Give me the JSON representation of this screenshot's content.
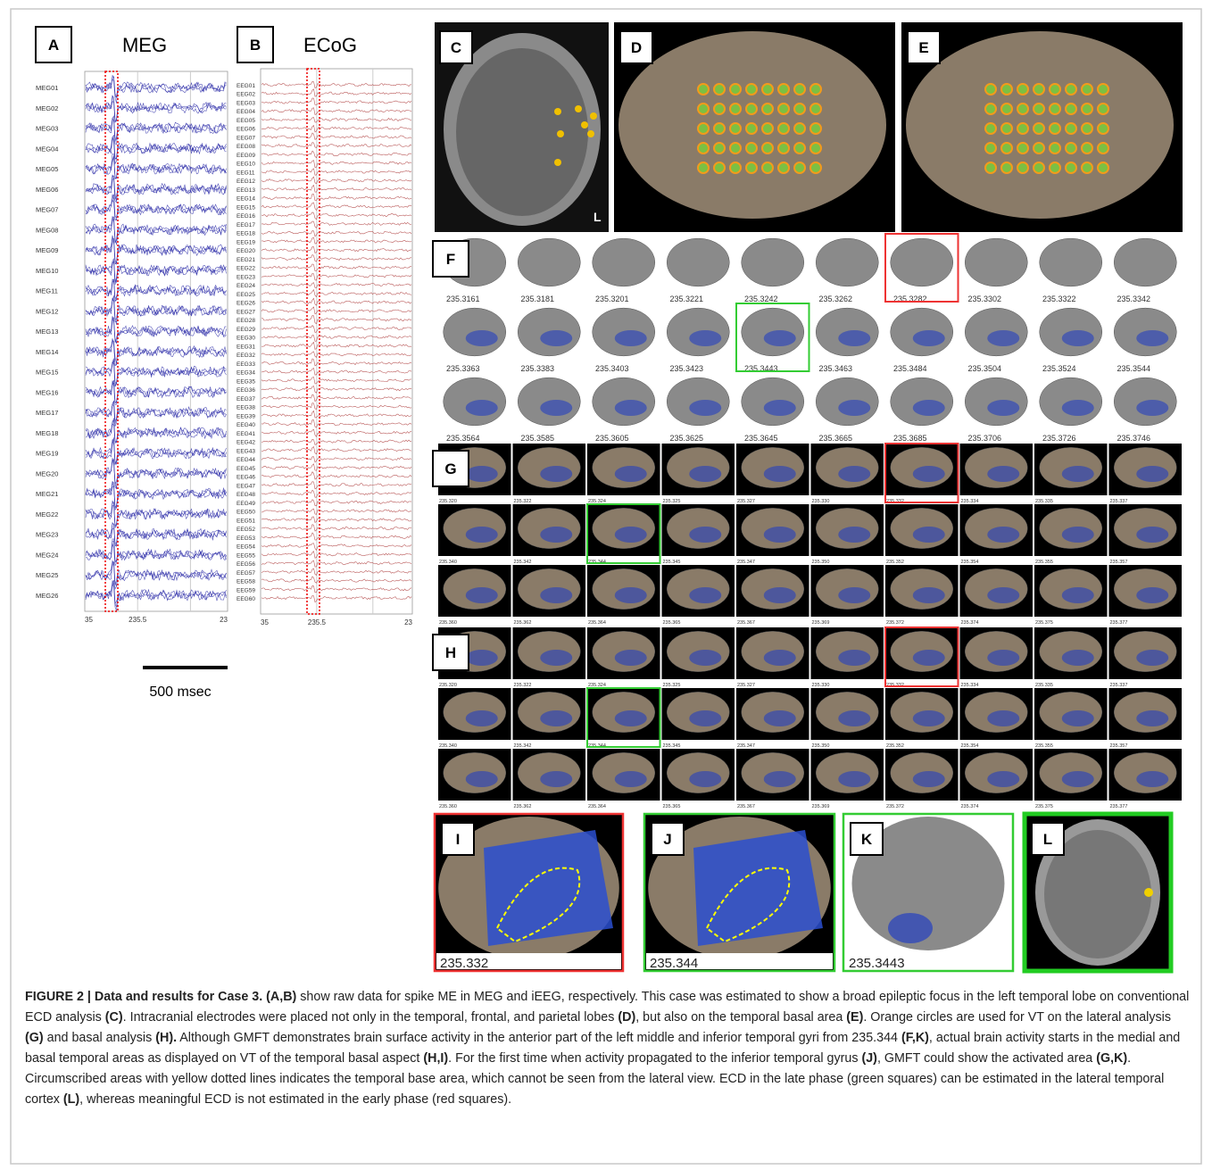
{
  "panels": {
    "A": {
      "label": "A",
      "title": "MEG",
      "channels": [
        "MEG01",
        "MEG02",
        "MEG03",
        "MEG04",
        "MEG05",
        "MEG06",
        "MEG07",
        "MEG08",
        "MEG09",
        "MEG10",
        "MEG11",
        "MEG12",
        "MEG13",
        "MEG14",
        "MEG15",
        "MEG16",
        "MEG17",
        "MEG18",
        "MEG19",
        "MEG20",
        "MEG21",
        "MEG22",
        "MEG23",
        "MEG24",
        "MEG25",
        "MEG26"
      ],
      "x_ticks": [
        "35",
        "235.5",
        "23"
      ],
      "scale_bar": "500 msec"
    },
    "B": {
      "label": "B",
      "title": "ECoG",
      "channels": [
        "EEG01",
        "EEG02",
        "EEG03",
        "EEG04",
        "EEG05",
        "EEG06",
        "EEG07",
        "EEG08",
        "EEG09",
        "EEG10",
        "EEG11",
        "EEG12",
        "EEG13",
        "EEG14",
        "EEG15",
        "EEG16",
        "EEG17",
        "EEG18",
        "EEG19",
        "EEG20",
        "EEG21",
        "EEG22",
        "EEG23",
        "EEG24",
        "EEG25",
        "EEG26",
        "EEG27",
        "EEG28",
        "EEG29",
        "EEG30",
        "EEG31",
        "EEG32",
        "EEG33",
        "EEG34",
        "EEG35",
        "EEG36",
        "EEG37",
        "EEG38",
        "EEG39",
        "EEG40",
        "EEG41",
        "EEG42",
        "EEG43",
        "EEG44",
        "EEG45",
        "EEG46",
        "EEG47",
        "EEG48",
        "EEG49",
        "EEG50",
        "EEG51",
        "EEG52",
        "EEG53",
        "EEG54",
        "EEG55",
        "EEG56",
        "EEG57",
        "EEG58",
        "EEG59",
        "EEG60"
      ],
      "x_ticks": [
        "35",
        "235.5",
        "23"
      ]
    },
    "C": {
      "label": "C",
      "side": "L"
    },
    "D": {
      "label": "D"
    },
    "E": {
      "label": "E"
    },
    "F": {
      "label": "F",
      "times": [
        "235.3161",
        "235.3181",
        "235.3201",
        "235.3221",
        "235.3242",
        "235.3262",
        "235.3282",
        "235.3302",
        "235.3322",
        "235.3342",
        "235.3363",
        "235.3383",
        "235.3403",
        "235.3423",
        "235.3443",
        "235.3463",
        "235.3484",
        "235.3504",
        "235.3524",
        "235.3544",
        "235.3564",
        "235.3585",
        "235.3605",
        "235.3625",
        "235.3645",
        "235.3665",
        "235.3685",
        "235.3706",
        "235.3726",
        "235.3746"
      ]
    },
    "G": {
      "label": "G",
      "times": [
        "235.320",
        "235.322",
        "235.324",
        "235.325",
        "235.327",
        "235.330",
        "235.332",
        "235.334",
        "235.335",
        "235.337",
        "235.340",
        "235.342",
        "235.344",
        "235.345",
        "235.347",
        "235.350",
        "235.352",
        "235.354",
        "235.355",
        "235.357",
        "235.360",
        "235.362",
        "235.364",
        "235.365",
        "235.367",
        "235.369",
        "235.372",
        "235.374",
        "235.375",
        "235.377"
      ]
    },
    "H": {
      "label": "H",
      "times": [
        "235.320",
        "235.322",
        "235.324",
        "235.325",
        "235.327",
        "235.330",
        "235.332",
        "235.334",
        "235.335",
        "235.337",
        "235.340",
        "235.342",
        "235.344",
        "235.345",
        "235.347",
        "235.350",
        "235.352",
        "235.354",
        "235.355",
        "235.357",
        "235.360",
        "235.362",
        "235.364",
        "235.365",
        "235.367",
        "235.369",
        "235.372",
        "235.374",
        "235.375",
        "235.377"
      ]
    },
    "I": {
      "label": "I",
      "time": "235.332"
    },
    "J": {
      "label": "J",
      "time": "235.344"
    },
    "K": {
      "label": "K",
      "time": "235.3443"
    },
    "L": {
      "label": "L"
    }
  },
  "caption": [
    {
      "text": "FIGURE 2 | Data and results for Case 3. (A,B)",
      "bold": true
    },
    {
      "text": " show raw data for spike ME in MEG and iEEG, respectively. This case was estimated to show a broad epileptic focus in the left temporal lobe on conventional ECD analysis ",
      "bold": false
    },
    {
      "text": "(C)",
      "bold": true
    },
    {
      "text": ". Intracranial electrodes were placed not only in the temporal, frontal, and parietal lobes ",
      "bold": false
    },
    {
      "text": "(D)",
      "bold": true
    },
    {
      "text": ", but also on the temporal basal area ",
      "bold": false
    },
    {
      "text": "(E)",
      "bold": true
    },
    {
      "text": ". Orange circles are used for VT on the lateral analysis ",
      "bold": false
    },
    {
      "text": "(G)",
      "bold": true
    },
    {
      "text": " and basal analysis ",
      "bold": false
    },
    {
      "text": "(H).",
      "bold": true
    },
    {
      "text": " Although GMFT demonstrates brain surface activity in the anterior part of the left middle and inferior temporal gyri from 235.344 ",
      "bold": false
    },
    {
      "text": "(F,K)",
      "bold": true
    },
    {
      "text": ", actual brain activity starts in the medial and basal temporal areas as displayed on VT of the temporal basal aspect ",
      "bold": false
    },
    {
      "text": "(H,I)",
      "bold": true
    },
    {
      "text": ". For the first time when activity propagated to the inferior temporal gyrus ",
      "bold": false
    },
    {
      "text": "(J)",
      "bold": true
    },
    {
      "text": ", GMFT could show the activated area ",
      "bold": false
    },
    {
      "text": "(G,K)",
      "bold": true
    },
    {
      "text": ". Circumscribed areas with yellow dotted lines indicates the temporal base area, which cannot be seen from the lateral view. ECD in the late phase (green squares) can be estimated in the lateral temporal cortex ",
      "bold": false
    },
    {
      "text": "(L)",
      "bold": true
    },
    {
      "text": ", whereas meaningful ECD is not estimated in the early phase (red squares).",
      "bold": false
    }
  ]
}
